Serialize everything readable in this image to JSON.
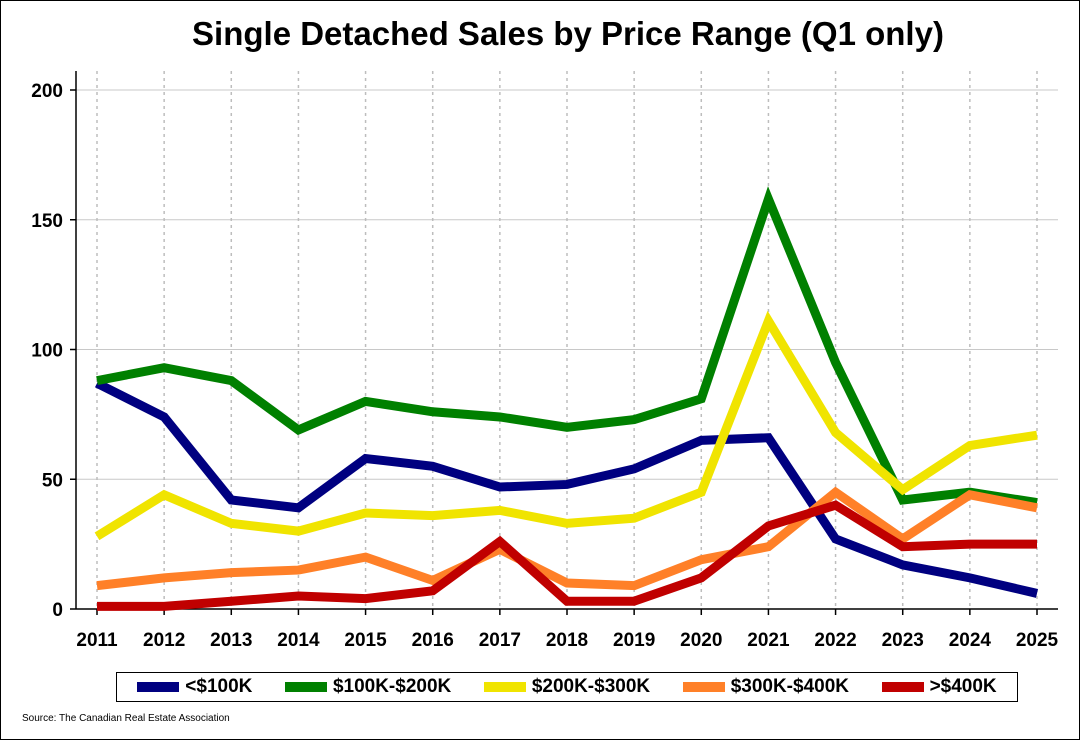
{
  "chart_data": {
    "type": "line",
    "title": "Single Detached Sales by Price Range (Q1 only)",
    "xlabel": "",
    "ylabel": "",
    "x": [
      2011,
      2012,
      2013,
      2014,
      2015,
      2016,
      2017,
      2018,
      2019,
      2020,
      2021,
      2022,
      2023,
      2024,
      2025
    ],
    "xlim": [
      2011,
      2025
    ],
    "ylim": [
      0,
      200
    ],
    "yticks": [
      0,
      50,
      100,
      150,
      200
    ],
    "grid": true,
    "legend_position": "bottom",
    "series": [
      {
        "name": "<$100K",
        "color": "#000080",
        "values": [
          87,
          74,
          42,
          39,
          58,
          55,
          47,
          48,
          54,
          65,
          66,
          27,
          17,
          12,
          6
        ]
      },
      {
        "name": "$100K-$200K",
        "color": "#008000",
        "values": [
          88,
          93,
          88,
          69,
          80,
          76,
          74,
          70,
          73,
          81,
          158,
          95,
          42,
          45,
          41
        ]
      },
      {
        "name": "$200K-$300K",
        "color": "#f0e400",
        "values": [
          28,
          44,
          33,
          30,
          37,
          36,
          38,
          33,
          35,
          45,
          111,
          68,
          46,
          63,
          67
        ]
      },
      {
        "name": "$300K-$400K",
        "color": "#ff8028",
        "values": [
          9,
          12,
          14,
          15,
          20,
          11,
          23,
          10,
          9,
          19,
          24,
          45,
          27,
          44,
          39
        ]
      },
      {
        "name": ">$400K",
        "color": "#c00000",
        "values": [
          1,
          1,
          3,
          5,
          4,
          7,
          26,
          3,
          3,
          12,
          32,
          40,
          24,
          25,
          25
        ]
      }
    ],
    "source": "Source: The Canadian Real Estate Association"
  }
}
